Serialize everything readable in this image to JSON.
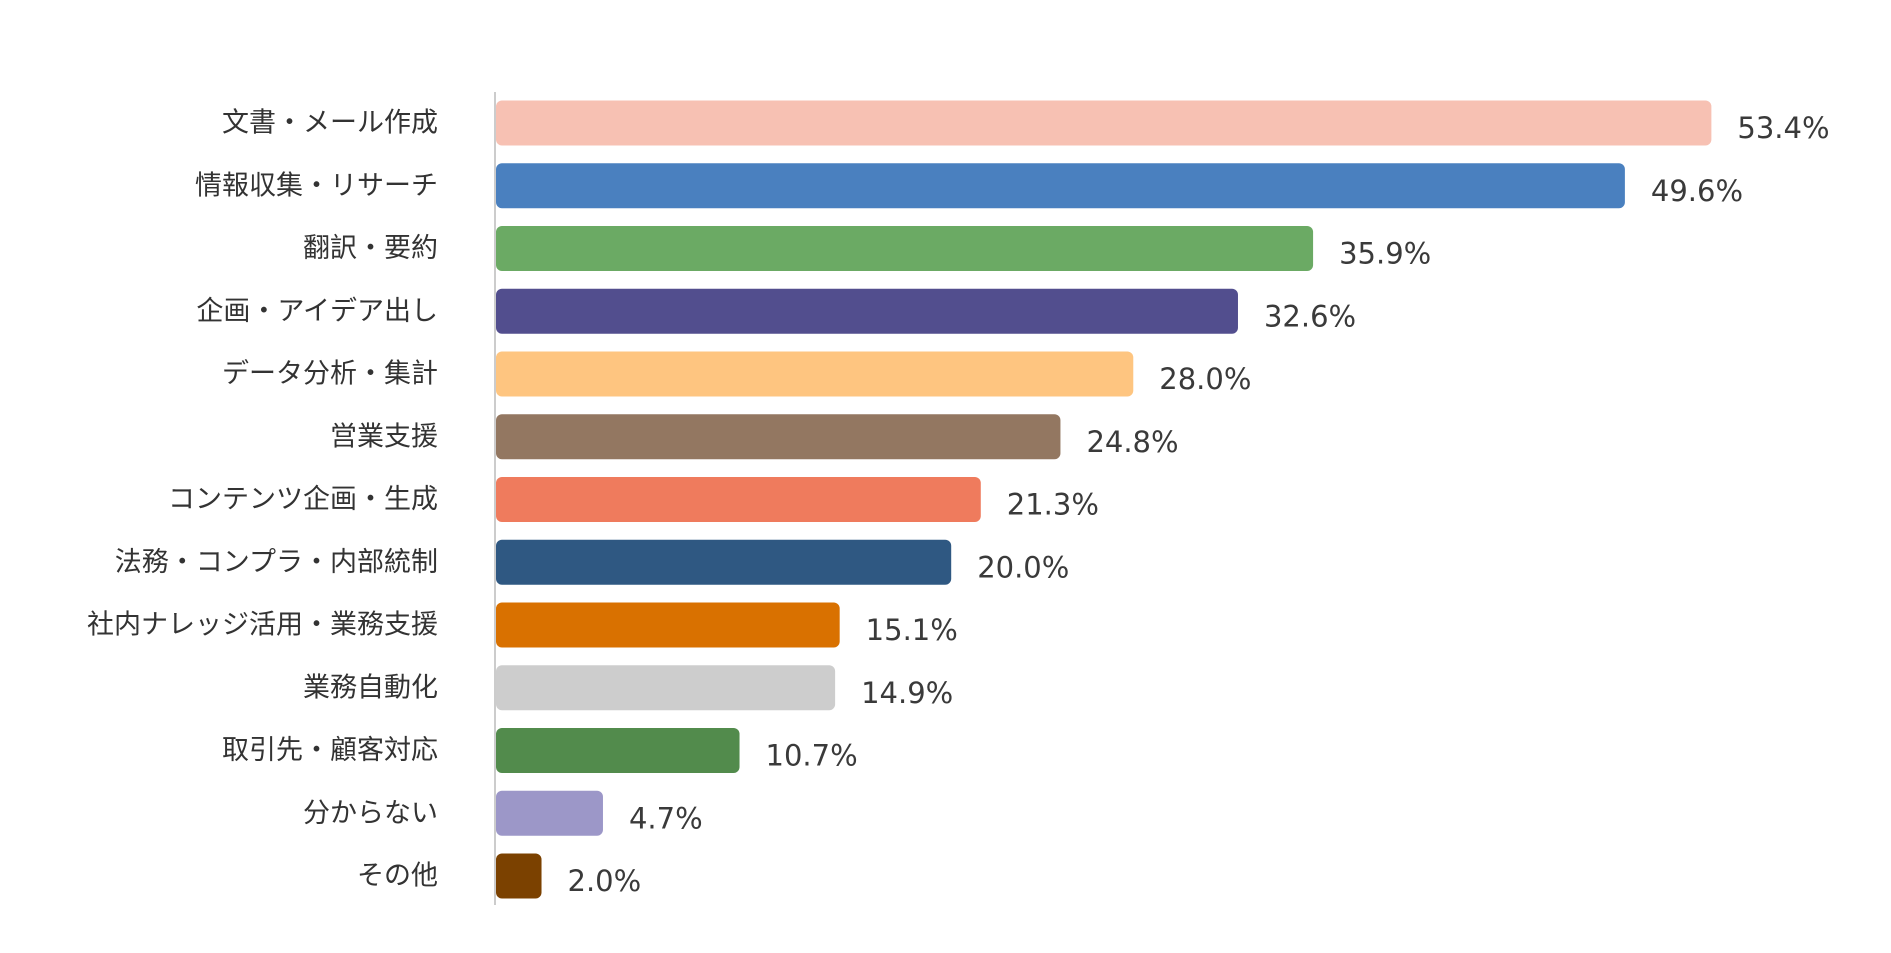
{
  "chart_data": {
    "type": "bar",
    "orientation": "horizontal",
    "title": "",
    "xlabel": "",
    "ylabel": "",
    "xlim": [
      0,
      60
    ],
    "grid": false,
    "legend": "none",
    "unit": "%",
    "categories": [
      "文書・メール作成",
      "情報収集・リサーチ",
      "翻訳・要約",
      "企画・アイデア出し",
      "データ分析・集計",
      "営業支援",
      "コンテンツ企画・生成",
      "法務・コンプラ・内部統制",
      "社内ナレッジ活用・業務支援",
      "業務自動化",
      "取引先・顧客対応",
      "分からない",
      "その他"
    ],
    "values": [
      53.4,
      49.6,
      35.9,
      32.6,
      28.0,
      24.8,
      21.3,
      20.0,
      15.1,
      14.9,
      10.7,
      4.7,
      2.0
    ],
    "value_labels": [
      "53.4%",
      "49.6%",
      "35.9%",
      "32.6%",
      "28.0%",
      "24.8%",
      "21.3%",
      "20.0%",
      "15.1%",
      "14.9%",
      "10.7%",
      "4.7%",
      "2.0%"
    ],
    "colors": [
      "#F7C1B3",
      "#4A80BF",
      "#6BAA64",
      "#524E8E",
      "#FEC580",
      "#937761",
      "#EF7B5D",
      "#2F5882",
      "#D97100",
      "#CDCDCD",
      "#528B4C",
      "#9C97C8",
      "#7B4100"
    ],
    "axis_color": "#CCCCCC"
  }
}
